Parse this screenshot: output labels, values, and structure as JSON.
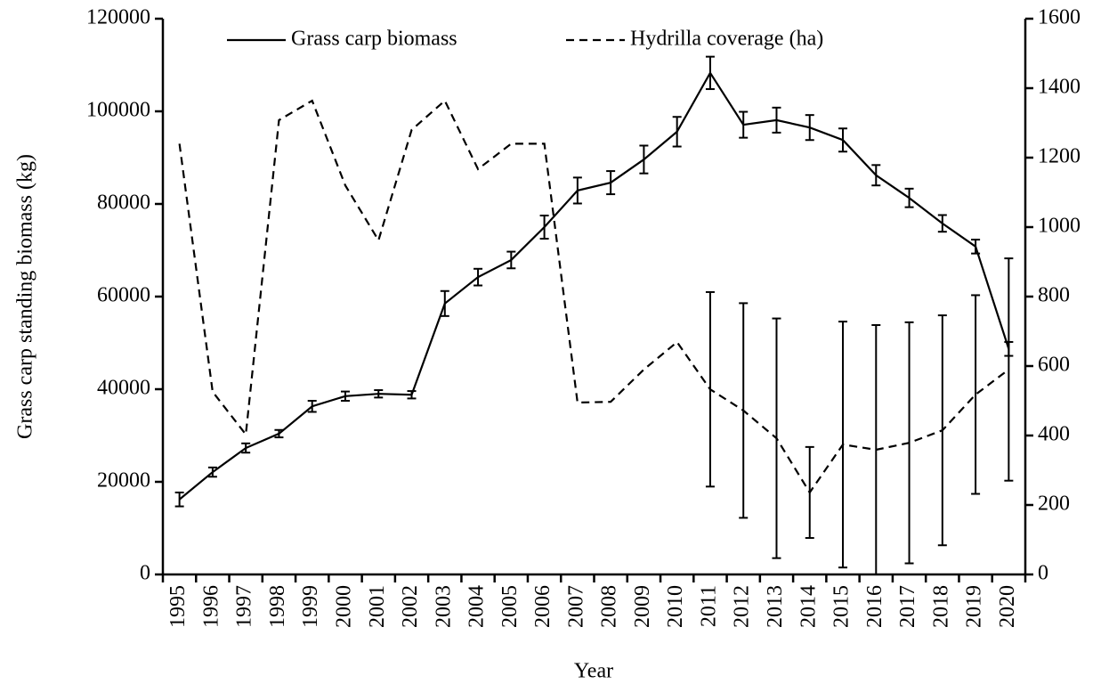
{
  "chart_data": {
    "type": "line",
    "xlabel": "Year",
    "ylabel": "Grass carp standing biomass (kg)",
    "categories": [
      "1995",
      "1996",
      "1997",
      "1998",
      "1999",
      "2000",
      "2001",
      "2002",
      "2003",
      "2004",
      "2005",
      "2006",
      "2007",
      "2008",
      "2009",
      "2010",
      "2011",
      "2012",
      "2013",
      "2014",
      "2015",
      "2016",
      "2017",
      "2018",
      "2019",
      "2020"
    ],
    "series": [
      {
        "name": "Grass carp biomass",
        "color": "#000000",
        "dash": "solid",
        "values": [
          16200,
          22100,
          27300,
          30400,
          36300,
          38500,
          39000,
          38800,
          58500,
          64200,
          67900,
          75000,
          82900,
          84600,
          89600,
          95600,
          108300,
          97100,
          98100,
          96500,
          93800,
          86200,
          81300,
          75800,
          70800,
          48700
        ],
        "errors": [
          1500,
          1000,
          1000,
          800,
          1200,
          1000,
          800,
          800,
          2700,
          1800,
          1800,
          2500,
          2800,
          2500,
          3000,
          3200,
          3500,
          2800,
          2700,
          2700,
          2500,
          2200,
          2000,
          1800,
          1500,
          1500
        ]
      },
      {
        "name": "Hydrilla coverage (ha)",
        "color": "#000000",
        "dash": "dashed",
        "axis": "y2",
        "values": [
          1240,
          526,
          403,
          1308,
          1364,
          1120,
          962,
          1280,
          1364,
          1167,
          1240,
          1240,
          495,
          497,
          590,
          669,
          533,
          472,
          392,
          236,
          374,
          359,
          379,
          415,
          518,
          590
        ],
        "errors": [
          null,
          null,
          null,
          null,
          null,
          null,
          null,
          null,
          null,
          null,
          null,
          null,
          null,
          null,
          null,
          null,
          280,
          309,
          345,
          131,
          354,
          359,
          347,
          331,
          286,
          320
        ]
      }
    ],
    "ylim": [
      0,
      120000
    ],
    "yticks": [
      0,
      20000,
      40000,
      60000,
      80000,
      100000,
      120000
    ],
    "y2lim": [
      0,
      1600
    ],
    "y2ticks": [
      0,
      200,
      400,
      600,
      800,
      1000,
      1200,
      1400,
      1600
    ],
    "legend": "top"
  }
}
